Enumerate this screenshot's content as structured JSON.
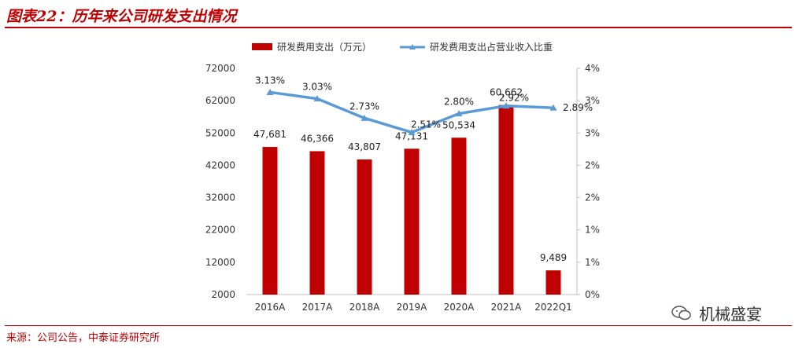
{
  "header": {
    "title": "图表22：历年来公司研发支出情况"
  },
  "footer": {
    "source": "来源：公司公告，中泰证券研究所",
    "watermark": "机械盛宴"
  },
  "colors": {
    "bar": "#c00000",
    "line": "#5b9bd5",
    "accent": "#c00000"
  },
  "chart_data": {
    "type": "bar",
    "categories": [
      "2016A",
      "2017A",
      "2018A",
      "2019A",
      "2020A",
      "2021A",
      "2022Q1"
    ],
    "series": [
      {
        "name": "研发费用支出（万元）",
        "type": "bar",
        "axis": "left",
        "values": [
          47681,
          46366,
          43807,
          47131,
          50534,
          60662,
          9489
        ],
        "labels": [
          "47,681",
          "46,366",
          "43,807",
          "47,131",
          "50,534",
          "60,662",
          "9,489"
        ]
      },
      {
        "name": "研发费用支出占营业收入比重",
        "type": "line",
        "axis": "right",
        "values": [
          3.13,
          3.03,
          2.73,
          2.51,
          2.8,
          2.92,
          2.89
        ],
        "labels": [
          "3.13%",
          "3.03%",
          "2.73%",
          "2.51%",
          "2.80%",
          "2.92%",
          "2.89%"
        ]
      }
    ],
    "y_left": {
      "ylim": [
        2000,
        72000
      ],
      "ticks": [
        "2000",
        "12000",
        "22000",
        "32000",
        "42000",
        "52000",
        "62000",
        "72000"
      ]
    },
    "y_right": {
      "ylim": [
        0,
        3.5
      ],
      "ticks": [
        "0%",
        "1%",
        "1%",
        "2%",
        "2%",
        "3%",
        "3%",
        "4%"
      ]
    },
    "legend": "top",
    "grid": false
  }
}
